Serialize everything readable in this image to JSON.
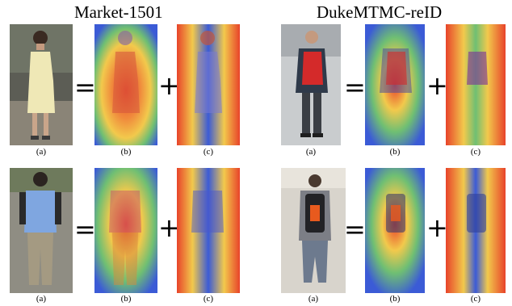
{
  "titles": {
    "left": "Market-1501",
    "right": "DukeMTMC-reID"
  },
  "operators": {
    "equals": "=",
    "plus": "+"
  },
  "captions": {
    "a": "(a)",
    "b": "(b)",
    "c": "(c)"
  },
  "colors": {
    "heat_hot": "#e8432a",
    "heat_warm": "#f2c94c",
    "heat_cool": "#3b5bd6",
    "background": "#ffffff"
  }
}
